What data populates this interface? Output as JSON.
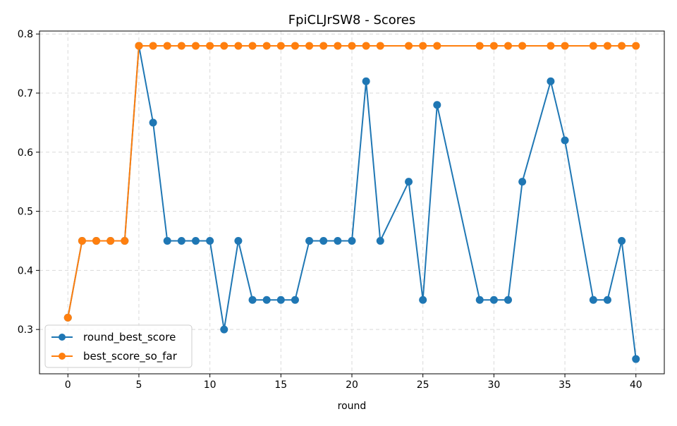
{
  "chart_data": {
    "type": "line",
    "title": "FpiCLJrSW8 - Scores",
    "xlabel": "round",
    "ylabel": "",
    "xlim": [
      -2,
      42
    ],
    "ylim": [
      0.225,
      0.805
    ],
    "xticks": [
      0,
      5,
      10,
      15,
      20,
      25,
      30,
      35,
      40
    ],
    "xtick_labels": [
      "0",
      "5",
      "10",
      "15",
      "20",
      "25",
      "30",
      "35",
      "40"
    ],
    "yticks": [
      0.3,
      0.4,
      0.5,
      0.6,
      0.7,
      0.8
    ],
    "ytick_labels": [
      "0.3",
      "0.4",
      "0.5",
      "0.6",
      "0.7",
      "0.8"
    ],
    "grid": true,
    "legend_position": "lower-left",
    "series": [
      {
        "name": "round_best_score",
        "color": "#1f77b4",
        "x": [
          0,
          1,
          2,
          3,
          4,
          5,
          6,
          7,
          8,
          9,
          10,
          11,
          12,
          13,
          14,
          15,
          16,
          17,
          18,
          19,
          20,
          21,
          22,
          24,
          25,
          26,
          29,
          30,
          31,
          32,
          34,
          35,
          37,
          38,
          39,
          40
        ],
        "y": [
          0.32,
          0.45,
          0.45,
          0.45,
          0.45,
          0.78,
          0.65,
          0.45,
          0.45,
          0.45,
          0.45,
          0.3,
          0.45,
          0.35,
          0.35,
          0.35,
          0.35,
          0.45,
          0.45,
          0.45,
          0.45,
          0.72,
          0.45,
          0.55,
          0.35,
          0.68,
          0.35,
          0.35,
          0.35,
          0.55,
          0.72,
          0.62,
          0.35,
          0.35,
          0.45,
          0.25
        ]
      },
      {
        "name": "best_score_so_far",
        "color": "#ff7f0e",
        "x": [
          0,
          1,
          2,
          3,
          4,
          5,
          6,
          7,
          8,
          9,
          10,
          11,
          12,
          13,
          14,
          15,
          16,
          17,
          18,
          19,
          20,
          21,
          22,
          24,
          25,
          26,
          29,
          30,
          31,
          32,
          34,
          35,
          37,
          38,
          39,
          40
        ],
        "y": [
          0.32,
          0.45,
          0.45,
          0.45,
          0.45,
          0.78,
          0.78,
          0.78,
          0.78,
          0.78,
          0.78,
          0.78,
          0.78,
          0.78,
          0.78,
          0.78,
          0.78,
          0.78,
          0.78,
          0.78,
          0.78,
          0.78,
          0.78,
          0.78,
          0.78,
          0.78,
          0.78,
          0.78,
          0.78,
          0.78,
          0.78,
          0.78,
          0.78,
          0.78,
          0.78,
          0.78
        ]
      }
    ]
  }
}
